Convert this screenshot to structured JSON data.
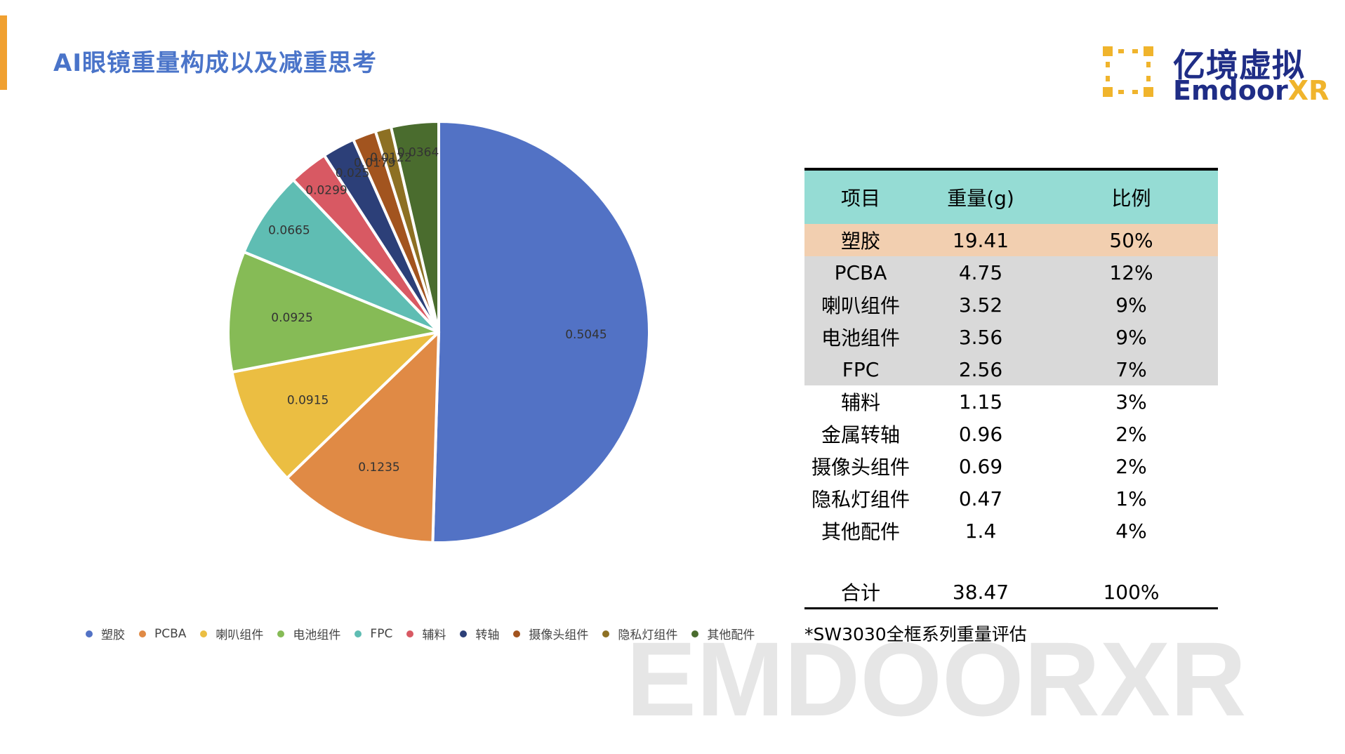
{
  "page": {
    "title": "AI眼镜重量构成以及减重思考",
    "watermark": "EMDOORXR",
    "accent_color": "#f0a030"
  },
  "logo": {
    "cn": "亿境虚拟",
    "en_main": "Emdoor",
    "en_xr": "XR",
    "colors": {
      "navy": "#1f2d86",
      "gold": "#f0b42c"
    }
  },
  "chart_data": {
    "type": "pie",
    "categories": [
      "塑胶",
      "PCBA",
      "喇叭组件",
      "电池组件",
      "FPC",
      "辅料",
      "转轴",
      "摄像头组件",
      "隐私灯组件",
      "其他配件"
    ],
    "values": [
      0.5045,
      0.1235,
      0.0915,
      0.0925,
      0.0665,
      0.0299,
      0.025,
      0.0179,
      0.0122,
      0.0364
    ],
    "labels": [
      "0.5045",
      "0.1235",
      "0.0915",
      "0.0925",
      "0.0665",
      "0.0299",
      "0.025",
      "0.0179",
      "0.0122",
      "0.0364"
    ],
    "colors": [
      "#5272c5",
      "#e08a45",
      "#ebbe42",
      "#86bb56",
      "#5fbdb3",
      "#d85963",
      "#2c3f78",
      "#a2541f",
      "#8d7023",
      "#4a6c2e"
    ],
    "legend_position": "bottom",
    "title": ""
  },
  "table": {
    "headers": [
      "项目",
      "重量(g)",
      "比例"
    ],
    "rows": [
      {
        "item": "塑胶",
        "weight": "19.41",
        "ratio": "50%",
        "style": "highlight"
      },
      {
        "item": "PCBA",
        "weight": "4.75",
        "ratio": "12%",
        "style": "gray"
      },
      {
        "item": "喇叭组件",
        "weight": "3.52",
        "ratio": "9%",
        "style": "gray"
      },
      {
        "item": "电池组件",
        "weight": "3.56",
        "ratio": "9%",
        "style": "gray"
      },
      {
        "item": "FPC",
        "weight": "2.56",
        "ratio": "7%",
        "style": "gray"
      },
      {
        "item": "辅料",
        "weight": "1.15",
        "ratio": "3%",
        "style": "plain"
      },
      {
        "item": "金属转轴",
        "weight": "0.96",
        "ratio": "2%",
        "style": "plain"
      },
      {
        "item": "摄像头组件",
        "weight": "0.69",
        "ratio": "2%",
        "style": "plain"
      },
      {
        "item": "隐私灯组件",
        "weight": "0.47",
        "ratio": "1%",
        "style": "plain"
      },
      {
        "item": "其他配件",
        "weight": "1.4",
        "ratio": "4%",
        "style": "plain"
      }
    ],
    "total": {
      "item": "合计",
      "weight": "38.47",
      "ratio": "100%"
    },
    "colors": {
      "header": "#95dcd4",
      "highlight": "#f2cfb0",
      "gray": "#d9d9d9"
    }
  },
  "footnote": "*SW3030全框系列重量评估"
}
